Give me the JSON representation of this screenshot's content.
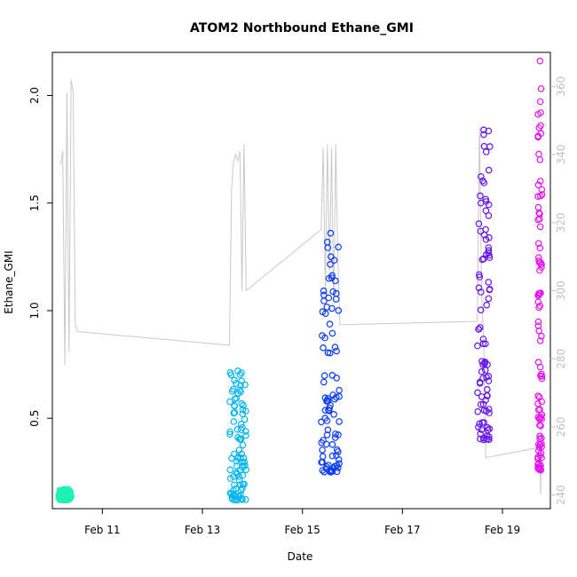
{
  "chart_data": {
    "type": "scatter",
    "title": "ATOM2 Northbound Ethane_GMI",
    "xlabel": "Date",
    "ylabel": "Ethane_GMI",
    "x_ticks": [
      "Feb 11",
      "Feb 13",
      "Feb 15",
      "Feb 17",
      "Feb 19"
    ],
    "y_ticks": [
      "0.5",
      "1.0",
      "1.5",
      "2.0"
    ],
    "y2_ticks": [
      "240",
      "260",
      "280",
      "300",
      "320",
      "340",
      "360"
    ],
    "xlim": [
      "Feb 10 00:00",
      "Feb 19 23:00"
    ],
    "ylim": [
      0.08,
      2.2
    ],
    "y2lim": [
      236,
      370
    ],
    "colors": {
      "line": "#c8c8c8",
      "flight1": "#1ef0b4",
      "flight2": "#05b4f0",
      "flight3": "#0a3cfa",
      "flight4": "#6414f0",
      "flight5": "#e614f0",
      "axis2": "#c0c0c0"
    },
    "line_series": {
      "name": "",
      "axis": "right",
      "x": [
        "Feb 10 04:00",
        "Feb 10 05:00",
        "Feb 10 06:00",
        "Feb 10 07:00",
        "Feb 10 08:00",
        "Feb 10 09:00",
        "Feb 10 10:00",
        "Feb 10 11:00",
        "Feb 10 12:00",
        "Feb 13 13:00",
        "Feb 13 14:00",
        "Feb 13 15:00",
        "Feb 13 16:00",
        "Feb 13 17:00",
        "Feb 13 18:00",
        "Feb 13 19:00",
        "Feb 13 20:00",
        "Feb 13 21:00",
        "Feb 15 09:00",
        "Feb 15 10:00",
        "Feb 15 11:00",
        "Feb 15 12:00",
        "Feb 15 13:00",
        "Feb 15 14:00",
        "Feb 15 15:00",
        "Feb 15 16:00",
        "Feb 15 17:00",
        "Feb 15 18:00",
        "Feb 18 12:00",
        "Feb 18 13:00",
        "Feb 18 14:00",
        "Feb 18 15:00",
        "Feb 18 16:00",
        "Feb 19 18:00",
        "Feb 19 18:20",
        "Feb 19 18:40"
      ],
      "y": [
        337,
        341,
        278,
        358,
        282,
        362,
        358,
        290,
        288,
        284,
        330,
        338,
        340,
        338,
        341,
        300,
        343,
        300,
        318,
        342,
        300,
        343,
        306,
        342,
        296,
        343,
        310,
        290,
        291,
        348,
        300,
        285,
        251,
        254,
        240,
        260
      ]
    },
    "series": [
      {
        "name": "",
        "color": "flight1",
        "x_range": [
          "Feb 10 03:00",
          "Feb 10 09:00"
        ],
        "y_range": [
          0.12,
          0.17
        ]
      },
      {
        "name": "",
        "color": "flight2",
        "x_range": [
          "Feb 13 13:00",
          "Feb 13 21:00"
        ],
        "y_range": [
          0.12,
          0.72
        ]
      },
      {
        "name": "",
        "color": "flight3",
        "x_range": [
          "Feb 15 09:00",
          "Feb 15 18:00"
        ],
        "y_range": [
          0.25,
          1.36
        ]
      },
      {
        "name": "",
        "color": "flight4",
        "x_range": [
          "Feb 18 12:00",
          "Feb 18 18:00"
        ],
        "y_range": [
          0.4,
          1.84
        ]
      },
      {
        "name": "",
        "color": "flight5",
        "x_range": [
          "Feb 19 17:00",
          "Feb 19 19:00"
        ],
        "y_range": [
          0.26,
          2.16
        ]
      }
    ],
    "grid": false,
    "legend": "none"
  }
}
